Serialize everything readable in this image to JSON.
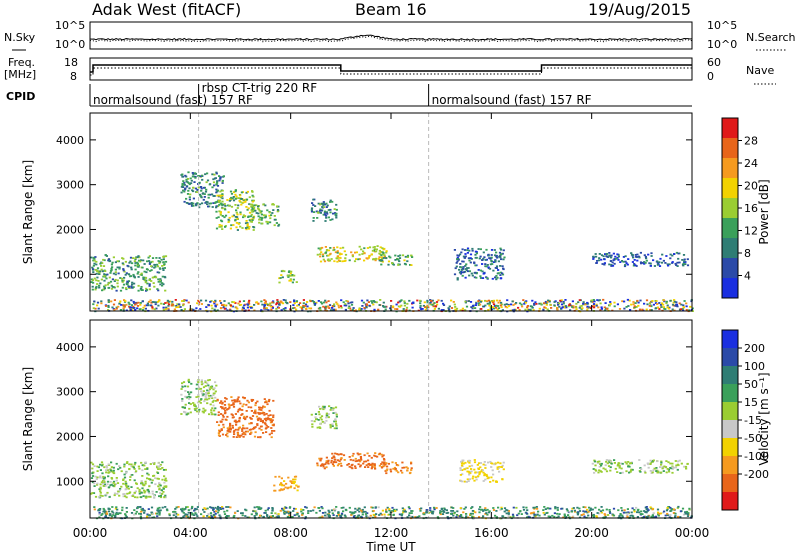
{
  "header": {
    "radar": "Adak West (fitACF)",
    "beam": "Beam 16",
    "date": "19/Aug/2015"
  },
  "noise_panel": {
    "left_label": "N.Sky",
    "right_label": "N.Search",
    "left_ticks": [
      "10^5",
      "10^0"
    ],
    "right_ticks": [
      "10^5",
      "10^0"
    ]
  },
  "freq_panel": {
    "left_label_1": "Freq.",
    "left_label_2": "[MHz]",
    "right_label": "Nave",
    "left_ticks": [
      "18",
      "8"
    ],
    "right_ticks": [
      "60",
      "0"
    ]
  },
  "cpid_panel": {
    "label": "CPID",
    "segments": [
      {
        "start_h": 0.0,
        "text": "normalsound (fast) 157 RF"
      },
      {
        "start_h": 4.33,
        "text": "rbsp CT-trig 220 RF"
      },
      {
        "start_h": 13.5,
        "text": "normalsound (fast) 157 RF"
      }
    ]
  },
  "x_axis": {
    "label": "Time UT",
    "ticks": [
      "00:00",
      "04:00",
      "08:00",
      "12:00",
      "16:00",
      "20:00",
      "00:00"
    ]
  },
  "colors": {
    "power": [
      "#1a2fe0",
      "#2b4aa8",
      "#2f7d74",
      "#3aa05a",
      "#9acd32",
      "#f2d200",
      "#f59a1f",
      "#e8651a",
      "#e01a1a"
    ],
    "velocity": [
      "#1a2fe0",
      "#2b4aa8",
      "#2f7d74",
      "#3aa05a",
      "#9acd32",
      "#c8c8c8",
      "#f2d200",
      "#f59a1f",
      "#e8651a",
      "#e01a1a"
    ]
  },
  "chart_data": [
    {
      "type": "heatmap",
      "title": "Power",
      "xlabel": "",
      "ylabel": "Slant Range [km]",
      "x_unit": "hours UT",
      "xlim": [
        0,
        24
      ],
      "ylim": [
        180,
        4600
      ],
      "y_ticks": [
        "1000",
        "2000",
        "3000",
        "4000"
      ],
      "colorbar_label": "Power [dB]",
      "colorbar_ticks": [
        "28",
        "24",
        "20",
        "16",
        "12",
        "8",
        "4"
      ],
      "colorbar_range": [
        0,
        30
      ],
      "regions": [
        {
          "t0": 0.0,
          "t1": 3.0,
          "r0": 650,
          "r1": 1450,
          "value": 11
        },
        {
          "t0": 3.6,
          "t1": 5.3,
          "r0": 2500,
          "r1": 3300,
          "value": 9
        },
        {
          "t0": 5.0,
          "t1": 6.5,
          "r0": 2000,
          "r1": 2900,
          "value": 14
        },
        {
          "t0": 6.4,
          "t1": 7.5,
          "r0": 2100,
          "r1": 2600,
          "value": 12
        },
        {
          "t0": 7.5,
          "t1": 8.2,
          "r0": 800,
          "r1": 1100,
          "value": 13
        },
        {
          "t0": 8.8,
          "t1": 9.8,
          "r0": 2200,
          "r1": 2700,
          "value": 9
        },
        {
          "t0": 9.0,
          "t1": 11.8,
          "r0": 1300,
          "r1": 1650,
          "value": 17
        },
        {
          "t0": 11.5,
          "t1": 12.8,
          "r0": 1200,
          "r1": 1450,
          "value": 12
        },
        {
          "t0": 14.5,
          "t1": 16.5,
          "r0": 900,
          "r1": 1600,
          "value": 7
        },
        {
          "t0": 20.0,
          "t1": 23.8,
          "r0": 1200,
          "r1": 1500,
          "value": 6
        },
        {
          "t0": 0.0,
          "t1": 24.0,
          "r0": 190,
          "r1": 450,
          "value": 10
        }
      ]
    },
    {
      "type": "heatmap",
      "title": "Velocity",
      "xlabel": "Time UT",
      "ylabel": "Slant Range [km]",
      "x_unit": "hours UT",
      "xlim": [
        0,
        24
      ],
      "ylim": [
        180,
        4600
      ],
      "y_ticks": [
        "1000",
        "2000",
        "3000",
        "4000"
      ],
      "colorbar_label": "Velocity [m s⁻¹]",
      "colorbar_ticks": [
        "200",
        "100",
        "50",
        "15",
        "-15",
        "-50",
        "-100",
        "-200"
      ],
      "colorbar_range": [
        -250,
        250
      ],
      "regions": [
        {
          "t0": 0.0,
          "t1": 3.0,
          "r0": 650,
          "r1": 1450,
          "value": 0
        },
        {
          "t0": 3.6,
          "t1": 5.0,
          "r0": 2500,
          "r1": 3300,
          "value": 0
        },
        {
          "t0": 5.0,
          "t1": 7.3,
          "r0": 2000,
          "r1": 2900,
          "value": -220
        },
        {
          "t0": 7.3,
          "t1": 8.3,
          "r0": 800,
          "r1": 1150,
          "value": -110
        },
        {
          "t0": 8.8,
          "t1": 9.8,
          "r0": 2200,
          "r1": 2700,
          "value": 0
        },
        {
          "t0": 9.0,
          "t1": 11.8,
          "r0": 1300,
          "r1": 1650,
          "value": -220
        },
        {
          "t0": 11.5,
          "t1": 12.8,
          "r0": 1200,
          "r1": 1450,
          "value": -200
        },
        {
          "t0": 14.7,
          "t1": 16.5,
          "r0": 1000,
          "r1": 1500,
          "value": -60
        },
        {
          "t0": 20.0,
          "t1": 23.8,
          "r0": 1200,
          "r1": 1500,
          "value": 0
        },
        {
          "t0": 0.0,
          "t1": 24.0,
          "r0": 190,
          "r1": 450,
          "value": 60
        }
      ]
    }
  ]
}
